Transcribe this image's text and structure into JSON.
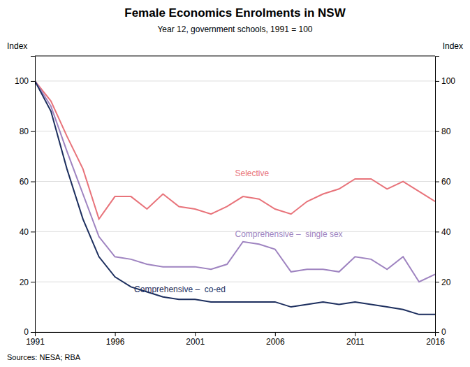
{
  "chart_data": {
    "type": "line",
    "title": "Female Economics Enrolments in NSW",
    "subtitle": "Year 12, government schools, 1991 = 100",
    "ylabel": "Index",
    "y2label": "Index",
    "source": "Sources: NESA; RBA",
    "x": [
      1991,
      1992,
      1993,
      1994,
      1995,
      1996,
      1997,
      1998,
      1999,
      2000,
      2001,
      2002,
      2003,
      2004,
      2005,
      2006,
      2007,
      2008,
      2009,
      2010,
      2011,
      2012,
      2013,
      2014,
      2015,
      2016
    ],
    "series": [
      {
        "color": "#e8737a",
        "values": [
          100,
          92,
          78,
          65,
          45,
          54,
          54,
          49,
          55,
          50,
          49,
          47,
          50,
          54,
          53,
          49,
          47,
          52,
          55,
          57,
          61,
          61,
          57,
          60,
          56,
          52
        ]
      },
      {
        "color": "#9e83c0",
        "values": [
          100,
          90,
          72,
          55,
          38,
          30,
          29,
          27,
          26,
          26,
          26,
          25,
          27,
          36,
          35,
          33,
          24,
          25,
          25,
          24,
          30,
          29,
          25,
          30,
          20,
          23
        ]
      },
      {
        "color": "#1c2e5e",
        "values": [
          100,
          88,
          65,
          45,
          30,
          22,
          18,
          16,
          14,
          13,
          13,
          12,
          12,
          12,
          12,
          12,
          10,
          11,
          12,
          11,
          12,
          11,
          10,
          9,
          7,
          7
        ]
      }
    ],
    "xlim": [
      1991,
      2016
    ],
    "xticks": [
      1991,
      1996,
      2001,
      2006,
      2011,
      2016
    ],
    "ylim": [
      0,
      110
    ],
    "yticks": [
      0,
      20,
      40,
      60,
      80,
      100
    ],
    "y2lim": [
      0,
      110
    ],
    "y2ticks": [
      0,
      20,
      40,
      60,
      80,
      100
    ],
    "grid": true,
    "annotations": [
      {
        "text": "Selective",
        "x": 2003.5,
        "y": 62,
        "color": "#e8737a"
      },
      {
        "text": "Comprehensive –  single sex",
        "x": 2003.5,
        "y": 38,
        "color": "#9e83c0"
      },
      {
        "text": "Comprehensive –  co-ed",
        "x": 1997.2,
        "y": 16,
        "color": "#1c2e5e"
      }
    ]
  }
}
